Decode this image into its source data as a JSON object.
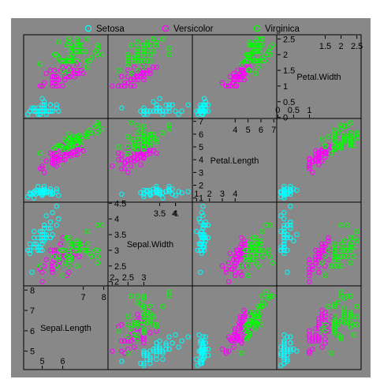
{
  "chart_data": {
    "type": "scatter",
    "title": "",
    "grid": false,
    "legend_placement": "top",
    "background": "#888888",
    "variables": [
      "Sepal.Length",
      "Sepal.Width",
      "Petal.Length",
      "Petal.Width"
    ],
    "ranges": {
      "Sepal.Length": [
        4.3,
        8.0
      ],
      "Sepal.Width": [
        2.0,
        4.4
      ],
      "Petal.Length": [
        1.0,
        6.9
      ],
      "Petal.Width": [
        0.1,
        2.5
      ]
    },
    "diagonal_ticks": {
      "Sepal.Length": {
        "bottom": [
          "5",
          "6"
        ],
        "top": [
          "7",
          "8"
        ]
      },
      "Sepal.Width": {
        "bottom": [
          "2",
          "2.5",
          "3"
        ],
        "top": [
          "3.5",
          "4",
          "4."
        ]
      },
      "Petal.Length": {
        "bottom": [
          "1",
          "2",
          "3",
          "4"
        ],
        "top": [
          "4",
          "5",
          "6",
          "7"
        ]
      },
      "Petal.Width": {
        "bottom": [
          "0",
          "0.5",
          "1"
        ],
        "top": [
          "1.5",
          "2",
          "2.5"
        ]
      }
    },
    "side_ticks": {
      "Sepal.Length": [
        "8",
        "7",
        "6",
        "5"
      ],
      "Sepal.Width": [
        "4.5",
        "4",
        "3.5",
        "3",
        "2.5",
        "2"
      ],
      "Petal.Length": [
        "7",
        "6",
        "5",
        "4",
        "3",
        "2",
        "1"
      ],
      "Petal.Width": [
        "2.5",
        "2",
        "1.5",
        "1",
        "0.5",
        "0"
      ]
    },
    "series": [
      {
        "name": "Setosa",
        "color": "#00ffff",
        "points": [
          [
            5.1,
            3.5,
            1.4,
            0.2
          ],
          [
            4.9,
            3.0,
            1.4,
            0.2
          ],
          [
            4.7,
            3.2,
            1.3,
            0.2
          ],
          [
            4.6,
            3.1,
            1.5,
            0.2
          ],
          [
            5.0,
            3.6,
            1.4,
            0.2
          ],
          [
            5.4,
            3.9,
            1.7,
            0.4
          ],
          [
            4.6,
            3.4,
            1.4,
            0.3
          ],
          [
            5.0,
            3.4,
            1.5,
            0.2
          ],
          [
            4.4,
            2.9,
            1.4,
            0.2
          ],
          [
            4.9,
            3.1,
            1.5,
            0.1
          ],
          [
            5.4,
            3.7,
            1.5,
            0.2
          ],
          [
            4.8,
            3.4,
            1.6,
            0.2
          ],
          [
            4.8,
            3.0,
            1.4,
            0.1
          ],
          [
            4.3,
            3.0,
            1.1,
            0.1
          ],
          [
            5.8,
            4.0,
            1.2,
            0.2
          ],
          [
            5.7,
            4.4,
            1.5,
            0.4
          ],
          [
            5.4,
            3.9,
            1.3,
            0.4
          ],
          [
            5.1,
            3.5,
            1.4,
            0.3
          ],
          [
            5.7,
            3.8,
            1.7,
            0.3
          ],
          [
            5.1,
            3.8,
            1.5,
            0.3
          ],
          [
            5.4,
            3.4,
            1.7,
            0.2
          ],
          [
            5.1,
            3.7,
            1.5,
            0.4
          ],
          [
            4.6,
            3.6,
            1.0,
            0.2
          ],
          [
            5.1,
            3.3,
            1.7,
            0.5
          ],
          [
            4.8,
            3.4,
            1.9,
            0.2
          ],
          [
            5.0,
            3.0,
            1.6,
            0.2
          ],
          [
            5.0,
            3.4,
            1.6,
            0.4
          ],
          [
            5.2,
            3.5,
            1.5,
            0.2
          ],
          [
            5.2,
            3.4,
            1.4,
            0.2
          ],
          [
            4.7,
            3.2,
            1.6,
            0.2
          ],
          [
            4.8,
            3.1,
            1.6,
            0.2
          ],
          [
            5.4,
            3.4,
            1.5,
            0.4
          ],
          [
            5.2,
            4.1,
            1.5,
            0.1
          ],
          [
            5.5,
            4.2,
            1.4,
            0.2
          ],
          [
            4.9,
            3.1,
            1.5,
            0.2
          ],
          [
            5.0,
            3.2,
            1.2,
            0.2
          ],
          [
            5.5,
            3.5,
            1.3,
            0.2
          ],
          [
            4.9,
            3.6,
            1.4,
            0.1
          ],
          [
            4.4,
            3.0,
            1.3,
            0.2
          ],
          [
            5.1,
            3.4,
            1.5,
            0.2
          ],
          [
            5.0,
            3.5,
            1.3,
            0.3
          ],
          [
            4.5,
            2.3,
            1.3,
            0.3
          ],
          [
            4.4,
            3.2,
            1.3,
            0.2
          ],
          [
            5.0,
            3.5,
            1.6,
            0.6
          ],
          [
            5.1,
            3.8,
            1.9,
            0.4
          ],
          [
            4.8,
            3.0,
            1.4,
            0.3
          ],
          [
            5.1,
            3.8,
            1.6,
            0.2
          ],
          [
            4.6,
            3.2,
            1.4,
            0.2
          ],
          [
            5.3,
            3.7,
            1.5,
            0.2
          ],
          [
            5.0,
            3.3,
            1.4,
            0.2
          ]
        ]
      },
      {
        "name": "Versicolor",
        "color": "#ff00ff",
        "points": [
          [
            7.0,
            3.2,
            4.7,
            1.4
          ],
          [
            6.4,
            3.2,
            4.5,
            1.5
          ],
          [
            6.9,
            3.1,
            4.9,
            1.5
          ],
          [
            5.5,
            2.3,
            4.0,
            1.3
          ],
          [
            6.5,
            2.8,
            4.6,
            1.5
          ],
          [
            5.7,
            2.8,
            4.5,
            1.3
          ],
          [
            6.3,
            3.3,
            4.7,
            1.6
          ],
          [
            4.9,
            2.4,
            3.3,
            1.0
          ],
          [
            6.6,
            2.9,
            4.6,
            1.3
          ],
          [
            5.2,
            2.7,
            3.9,
            1.4
          ],
          [
            5.0,
            2.0,
            3.5,
            1.0
          ],
          [
            5.9,
            3.0,
            4.2,
            1.5
          ],
          [
            6.0,
            2.2,
            4.0,
            1.0
          ],
          [
            6.1,
            2.9,
            4.7,
            1.4
          ],
          [
            5.6,
            2.9,
            3.6,
            1.3
          ],
          [
            6.7,
            3.1,
            4.4,
            1.4
          ],
          [
            5.6,
            3.0,
            4.5,
            1.5
          ],
          [
            5.8,
            2.7,
            4.1,
            1.0
          ],
          [
            6.2,
            2.2,
            4.5,
            1.5
          ],
          [
            5.6,
            2.5,
            3.9,
            1.1
          ],
          [
            5.9,
            3.2,
            4.8,
            1.8
          ],
          [
            6.1,
            2.8,
            4.0,
            1.3
          ],
          [
            6.3,
            2.5,
            4.9,
            1.5
          ],
          [
            6.1,
            2.8,
            4.7,
            1.2
          ],
          [
            6.4,
            2.9,
            4.3,
            1.3
          ],
          [
            6.6,
            3.0,
            4.4,
            1.4
          ],
          [
            6.8,
            2.8,
            4.8,
            1.4
          ],
          [
            6.7,
            3.0,
            5.0,
            1.7
          ],
          [
            6.0,
            2.9,
            4.5,
            1.5
          ],
          [
            5.7,
            2.6,
            3.5,
            1.0
          ],
          [
            5.5,
            2.4,
            3.8,
            1.1
          ],
          [
            5.5,
            2.4,
            3.7,
            1.0
          ],
          [
            5.8,
            2.7,
            3.9,
            1.2
          ],
          [
            6.0,
            2.7,
            5.1,
            1.6
          ],
          [
            5.4,
            3.0,
            4.5,
            1.5
          ],
          [
            6.0,
            3.4,
            4.5,
            1.6
          ],
          [
            6.7,
            3.1,
            4.7,
            1.5
          ],
          [
            6.3,
            2.3,
            4.4,
            1.3
          ],
          [
            5.6,
            3.0,
            4.1,
            1.3
          ],
          [
            5.5,
            2.5,
            4.0,
            1.3
          ],
          [
            5.5,
            2.6,
            4.4,
            1.2
          ],
          [
            6.1,
            3.0,
            4.6,
            1.4
          ],
          [
            5.8,
            2.6,
            4.0,
            1.2
          ],
          [
            5.0,
            2.3,
            3.3,
            1.0
          ],
          [
            5.6,
            2.7,
            4.2,
            1.3
          ],
          [
            5.7,
            3.0,
            4.2,
            1.2
          ],
          [
            5.7,
            2.9,
            4.2,
            1.3
          ],
          [
            6.2,
            2.9,
            4.3,
            1.3
          ],
          [
            5.1,
            2.5,
            3.0,
            1.1
          ],
          [
            5.7,
            2.8,
            4.1,
            1.3
          ]
        ]
      },
      {
        "name": "Virginica",
        "color": "#00ff00",
        "points": [
          [
            6.3,
            3.3,
            6.0,
            2.5
          ],
          [
            5.8,
            2.7,
            5.1,
            1.9
          ],
          [
            7.1,
            3.0,
            5.9,
            2.1
          ],
          [
            6.3,
            2.9,
            5.6,
            1.8
          ],
          [
            6.5,
            3.0,
            5.8,
            2.2
          ],
          [
            7.6,
            3.0,
            6.6,
            2.1
          ],
          [
            4.9,
            2.5,
            4.5,
            1.7
          ],
          [
            7.3,
            2.9,
            6.3,
            1.8
          ],
          [
            6.7,
            2.5,
            5.8,
            1.8
          ],
          [
            7.2,
            3.6,
            6.1,
            2.5
          ],
          [
            6.5,
            3.2,
            5.1,
            2.0
          ],
          [
            6.4,
            2.7,
            5.3,
            1.9
          ],
          [
            6.8,
            3.0,
            5.5,
            2.1
          ],
          [
            5.7,
            2.5,
            5.0,
            2.0
          ],
          [
            5.8,
            2.8,
            5.1,
            2.4
          ],
          [
            6.4,
            3.2,
            5.3,
            2.3
          ],
          [
            6.5,
            3.0,
            5.5,
            1.8
          ],
          [
            7.7,
            3.8,
            6.7,
            2.2
          ],
          [
            7.7,
            2.6,
            6.9,
            2.3
          ],
          [
            6.0,
            2.2,
            5.0,
            1.5
          ],
          [
            6.9,
            3.2,
            5.7,
            2.3
          ],
          [
            5.6,
            2.8,
            4.9,
            2.0
          ],
          [
            7.7,
            2.8,
            6.7,
            2.0
          ],
          [
            6.3,
            2.7,
            4.9,
            1.8
          ],
          [
            6.7,
            3.3,
            5.7,
            2.1
          ],
          [
            7.2,
            3.2,
            6.0,
            1.8
          ],
          [
            6.2,
            2.8,
            4.8,
            1.8
          ],
          [
            6.1,
            3.0,
            4.9,
            1.8
          ],
          [
            6.4,
            2.8,
            5.6,
            2.1
          ],
          [
            7.2,
            3.0,
            5.8,
            1.6
          ],
          [
            7.4,
            2.8,
            6.1,
            1.9
          ],
          [
            7.9,
            3.8,
            6.4,
            2.0
          ],
          [
            6.4,
            2.8,
            5.6,
            2.2
          ],
          [
            6.3,
            2.8,
            5.1,
            1.5
          ],
          [
            6.1,
            2.6,
            5.6,
            1.4
          ],
          [
            7.7,
            3.0,
            6.1,
            2.3
          ],
          [
            6.3,
            3.4,
            5.6,
            2.4
          ],
          [
            6.4,
            3.1,
            5.5,
            1.8
          ],
          [
            6.0,
            3.0,
            4.8,
            1.8
          ],
          [
            6.9,
            3.1,
            5.4,
            2.1
          ],
          [
            6.7,
            3.1,
            5.6,
            2.4
          ],
          [
            6.9,
            3.1,
            5.1,
            2.3
          ],
          [
            5.8,
            2.7,
            5.1,
            1.9
          ],
          [
            6.8,
            3.2,
            5.9,
            2.3
          ],
          [
            6.7,
            3.3,
            5.7,
            2.5
          ],
          [
            6.7,
            3.0,
            5.2,
            2.3
          ],
          [
            6.3,
            2.5,
            5.0,
            1.9
          ],
          [
            6.5,
            3.0,
            5.2,
            2.0
          ],
          [
            6.2,
            3.4,
            5.4,
            2.3
          ],
          [
            5.9,
            3.0,
            5.1,
            1.8
          ]
        ]
      }
    ]
  }
}
